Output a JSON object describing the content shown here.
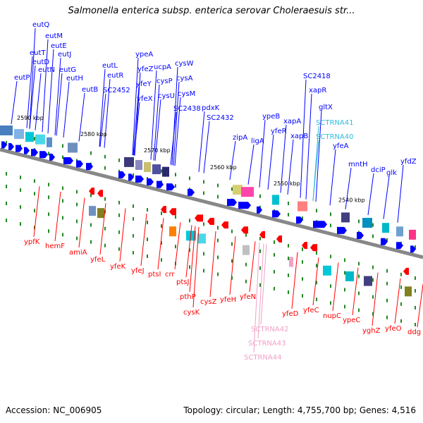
{
  "title": "Salmonella enterica subsp. enterica serovar Choleraesuis str...",
  "footer": {
    "accession": "Accession: NC_006905",
    "summary": "Topology: circular; Length: 4,755,700 bp; Genes: 4,516"
  },
  "scale_labels": [
    "2590 kbp",
    "2580 kbp",
    "2570 kbp",
    "2560 kbp",
    "2550 kbp",
    "2540 kbp"
  ],
  "top_genes": [
    "eutQ",
    "eutM",
    "eutE",
    "eutT",
    "eutJ",
    "eutD",
    "eutN",
    "eutG",
    "eutP",
    "eutH",
    "eutB",
    "eutL",
    "eutR",
    "SC2452",
    "ypeA",
    "yfeZ",
    "yfeY",
    "yfeX",
    "ucpA",
    "cysP",
    "cysU",
    "cysW",
    "cysA",
    "cysM",
    "SC2438",
    "pdxK",
    "SC2432",
    "zipA",
    "ligA",
    "ypeB",
    "yfeR",
    "xapA",
    "xapB",
    "SC2418",
    "xapR",
    "gltX",
    "SCTRNA41",
    "SCTRNA40",
    "yfeA",
    "mntH",
    "dciP",
    "glk",
    "yfdZ"
  ],
  "bottom_genes": [
    "ypfK",
    "hemF",
    "amiA",
    "yfeL",
    "yfeK",
    "yfeJ",
    "ptsI",
    "crr",
    "ptsJ",
    "pthP",
    "cysK",
    "cysZ",
    "yfeH",
    "yfeN",
    "SCTRNA42",
    "SCTRNA43",
    "SCTRNA44",
    "yfeD",
    "yfeC",
    "nupC",
    "ypeC",
    "yghZ",
    "yfeO",
    "ddg"
  ],
  "colors": {
    "forward": "#0000ff",
    "reverse": "#ff0000",
    "trna": "#33bbdd",
    "trna_reverse": "#f2a0c8",
    "backbone": "#888888",
    "tick": "#228822"
  }
}
